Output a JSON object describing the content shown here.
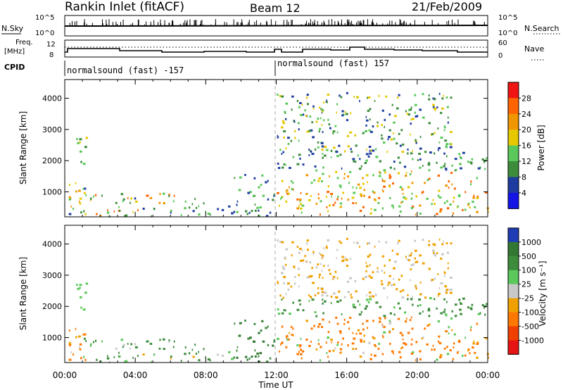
{
  "header": {
    "station": "Rankin Inlet (fitACF)",
    "beam": "Beam 12",
    "date": "21/Feb/2009"
  },
  "summary_panels": {
    "nsky_label": "N.Sky",
    "nsky_ticks": [
      "10^5",
      "10^0"
    ],
    "nsearch_label": "N.Search",
    "nsearch_ticks": [
      "10^5",
      "10^0"
    ],
    "freq_label_line1": "Freq.",
    "freq_label_line2": "[MHz]",
    "freq_ticks": [
      "12",
      "8"
    ],
    "nave_label": "Nave",
    "nave_ticks": [
      "60",
      "0"
    ],
    "cpid_label": "CPID",
    "cpid_segments": [
      {
        "label": "normalsound (fast) -157"
      },
      {
        "label": "normalsound (fast) 157"
      }
    ]
  },
  "chart_data": [
    {
      "type": "heatmap",
      "title": "",
      "xlabel": "Time UT",
      "ylabel": "Slant Range [km]",
      "x_ticks": [
        "00:00",
        "04:00",
        "08:00",
        "12:00",
        "16:00",
        "20:00",
        "00:00"
      ],
      "y_ticks": [
        1000,
        2000,
        3000,
        4000
      ],
      "xlim_hours": [
        0,
        24
      ],
      "ylim_km": [
        200,
        4600
      ],
      "colorbar_label": "Power [dB]",
      "colorbar_ticks": [
        "4",
        "8",
        "12",
        "16",
        "20",
        "24",
        "28"
      ],
      "colorbar_colors": [
        "#1414e6",
        "#1e3ca0",
        "#3c8c3c",
        "#5ac85a",
        "#e6c800",
        "#f09600",
        "#ff6400",
        "#f01414"
      ],
      "regions": [
        {
          "t0": 0.0,
          "t1": 1.2,
          "r0": 250,
          "r1": 1350,
          "vmin": 4,
          "vmax": 28
        },
        {
          "t0": 0.6,
          "t1": 1.2,
          "r0": 1900,
          "r1": 2800,
          "vmin": 8,
          "vmax": 20
        },
        {
          "t0": 1.0,
          "t1": 6.3,
          "r0": 250,
          "r1": 1000,
          "vmin": 4,
          "vmax": 28
        },
        {
          "t0": 6.5,
          "t1": 9.5,
          "r0": 250,
          "r1": 900,
          "vmin": 4,
          "vmax": 16
        },
        {
          "t0": 9.5,
          "t1": 12.0,
          "r0": 250,
          "r1": 1600,
          "vmin": 4,
          "vmax": 16
        },
        {
          "t0": 12.0,
          "t1": 24.0,
          "r0": 300,
          "r1": 1700,
          "vmin": 12,
          "vmax": 28
        },
        {
          "t0": 12.0,
          "t1": 24.0,
          "r0": 1700,
          "r1": 2300,
          "vmin": 4,
          "vmax": 16
        },
        {
          "t0": 12.0,
          "t1": 22.0,
          "r0": 2300,
          "r1": 4200,
          "vmin": 4,
          "vmax": 20
        }
      ]
    },
    {
      "type": "heatmap",
      "title": "",
      "xlabel": "Time UT",
      "ylabel": "Slant Range [km]",
      "x_ticks": [
        "00:00",
        "04:00",
        "08:00",
        "12:00",
        "16:00",
        "20:00",
        "00:00"
      ],
      "y_ticks": [
        1000,
        2000,
        3000,
        4000
      ],
      "xlim_hours": [
        0,
        24
      ],
      "ylim_km": [
        200,
        4600
      ],
      "colorbar_label": "Velocity [m s⁻¹]",
      "colorbar_ticks": [
        "1000",
        "500",
        "100",
        "25",
        "-25",
        "-100",
        "-500",
        "-1000"
      ],
      "colorbar_colors": [
        "#1e3cb4",
        "#327832",
        "#3c8c3c",
        "#5ac85a",
        "#c8c8c8",
        "#f0a000",
        "#ff7800",
        "#f04000",
        "#e61414"
      ],
      "regions": [
        {
          "t0": 0.0,
          "t1": 1.2,
          "r0": 250,
          "r1": 1350,
          "vmin": -500,
          "vmax": 100
        },
        {
          "t0": 0.6,
          "t1": 1.2,
          "r0": 1900,
          "r1": 2800,
          "vmin": 25,
          "vmax": 100
        },
        {
          "t0": 1.0,
          "t1": 6.3,
          "r0": 250,
          "r1": 1000,
          "vmin": -100,
          "vmax": 500
        },
        {
          "t0": 6.5,
          "t1": 9.5,
          "r0": 250,
          "r1": 900,
          "vmin": -100,
          "vmax": 500
        },
        {
          "t0": 9.5,
          "t1": 12.0,
          "r0": 250,
          "r1": 1600,
          "vmin": 100,
          "vmax": 1000
        },
        {
          "t0": 12.0,
          "t1": 24.0,
          "r0": 300,
          "r1": 1700,
          "vmin": -500,
          "vmax": 100
        },
        {
          "t0": 12.0,
          "t1": 24.0,
          "r0": 1700,
          "r1": 2300,
          "vmin": 25,
          "vmax": 500
        },
        {
          "t0": 12.0,
          "t1": 22.0,
          "r0": 2300,
          "r1": 4200,
          "vmin": -100,
          "vmax": 25
        }
      ]
    }
  ]
}
